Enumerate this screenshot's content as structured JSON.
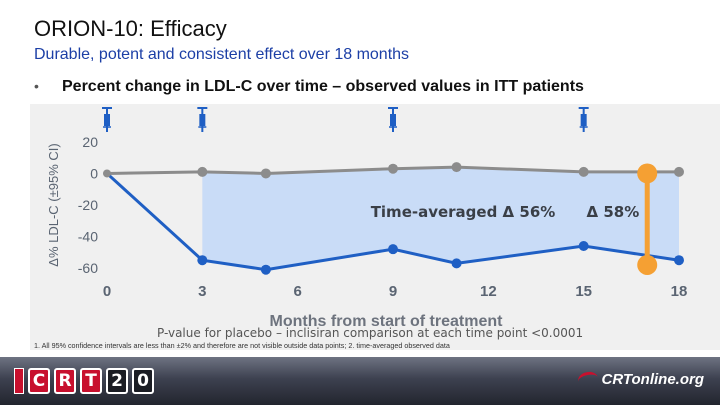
{
  "slide": {
    "title": "ORION-10: Efficacy",
    "subtitle": "Durable, potent and consistent effect over 18 months",
    "bullet_marker": "•",
    "bullet_text": "Percent change in LDL-C over time – observed values in ITT patients",
    "pvalue_note": "P-value for placebo – inclisiran comparison at each time point <0.0001",
    "footnote": "1. All 95% confidence intervals are less than ±2% and therefore are not visible outside data points; 2. time-averaged observed data"
  },
  "footer": {
    "crt_logo_chars": [
      "C",
      "R",
      "T",
      "2",
      "0"
    ],
    "crtonline_label": "CRTonline.org"
  },
  "colors": {
    "placebo": "#8c8c8c",
    "inclisiran": "#1f5fc4",
    "shade": "#c9dcf7",
    "delta_marker": "#f5a033",
    "subtitle": "#1c3fa6",
    "axis_tick": "#5a6472"
  },
  "chart_data": {
    "type": "line",
    "xlabel": "Months from start of treatment",
    "ylabel": "Δ% LDL-C (±95% CI)",
    "xlim": [
      0,
      18
    ],
    "ylim": [
      -65,
      25
    ],
    "x_ticks": [
      0,
      3,
      6,
      9,
      12,
      15,
      18
    ],
    "y_ticks": [
      20,
      0,
      -20,
      -40,
      -60
    ],
    "injection_times": [
      0,
      3,
      9,
      15
    ],
    "injection_icon": "syringe-icon",
    "series": [
      {
        "name": "Placebo",
        "x": [
          0,
          3,
          5,
          9,
          11,
          15,
          18
        ],
        "values": [
          0,
          1,
          0,
          3,
          4,
          1,
          1
        ]
      },
      {
        "name": "Inclisiran",
        "x": [
          0,
          3,
          5,
          9,
          11,
          15,
          18
        ],
        "values": [
          0,
          -55,
          -61,
          -48,
          -57,
          -46,
          -55
        ]
      }
    ],
    "annotations": [
      {
        "text": "Time-averaged Δ 56%",
        "note": "time-averaged difference between placebo and inclisiran"
      },
      {
        "text": "Δ 58%",
        "at_month": 17,
        "from": 0,
        "to": -58
      }
    ]
  }
}
